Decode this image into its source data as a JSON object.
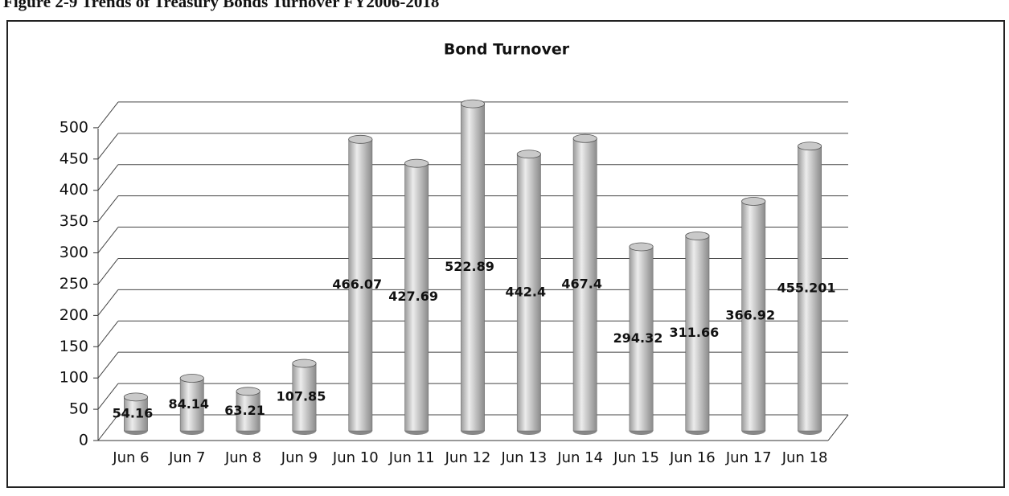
{
  "caption": "Figure 2-9 Trends of Treasury Bonds Turnover FY2006-2018",
  "chart_data": {
    "type": "bar",
    "title": "Bond Turnover",
    "categories": [
      "Jun 6",
      "Jun 7",
      "Jun 8",
      "Jun 9",
      "Jun 10",
      "Jun 11",
      "Jun 12",
      "Jun 13",
      "Jun 14",
      "Jun 15",
      "Jun 16",
      "Jun 17",
      "Jun 18"
    ],
    "values": [
      54.16,
      84.14,
      63.21,
      107.85,
      466.07,
      427.69,
      522.89,
      442.4,
      467.4,
      294.32,
      311.66,
      366.92,
      455.201
    ],
    "color": "#c9c9c9",
    "ylim": [
      0,
      550
    ],
    "yticks": [
      0,
      50,
      100,
      150,
      200,
      250,
      300,
      350,
      400,
      450,
      500
    ],
    "grid": true
  }
}
